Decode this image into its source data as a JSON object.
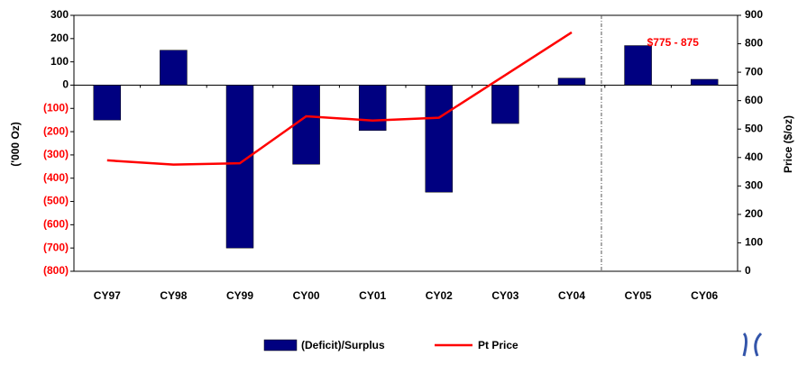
{
  "chart_data": {
    "type": "bar_line",
    "categories": [
      "CY97",
      "CY98",
      "CY99",
      "CY00",
      "CY01",
      "CY02",
      "CY03",
      "CY04",
      "CY05",
      "CY06"
    ],
    "series": [
      {
        "name": "(Deficit)/Surplus",
        "color": "#000080",
        "type": "bar",
        "values": [
          -150,
          150,
          -700,
          -340,
          -195,
          -460,
          -165,
          30,
          170,
          25
        ]
      },
      {
        "name": "Pt Price",
        "color": "#ff0000",
        "type": "line",
        "axis": "y2",
        "values": [
          390,
          375,
          380,
          545,
          530,
          540,
          690,
          840,
          null,
          null
        ]
      }
    ],
    "ylabel": "('000 Oz)",
    "y2label": "Price ($/oz)",
    "ylim": [
      -800,
      300
    ],
    "yticks": [
      {
        "value": -800,
        "label": "(800)"
      },
      {
        "value": -700,
        "label": "(700)"
      },
      {
        "value": -600,
        "label": "(600)"
      },
      {
        "value": -500,
        "label": "(500)"
      },
      {
        "value": -400,
        "label": "(400)"
      },
      {
        "value": -300,
        "label": "(300)"
      },
      {
        "value": -200,
        "label": "(200)"
      },
      {
        "value": -100,
        "label": "(100)"
      },
      0,
      100,
      200,
      300
    ],
    "ytick_negative_color": "#ff0000",
    "y2lim": [
      0,
      900
    ],
    "y2ticks": [
      0,
      100,
      200,
      300,
      400,
      500,
      600,
      700,
      800,
      900
    ],
    "annotation": "$775 - 875",
    "legend": "bottom"
  }
}
